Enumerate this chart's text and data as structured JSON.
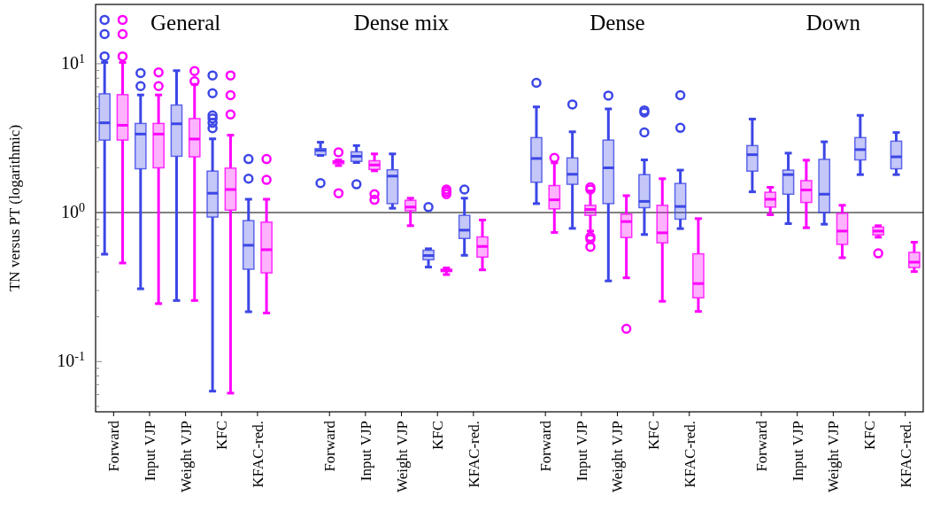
{
  "chart_data": {
    "type": "box",
    "ylabel": "TN versus PT (logarithmic)",
    "log": "y",
    "grid": false,
    "categories": [
      "Forward",
      "Input VJP",
      "Weight VJP",
      "KFC",
      "KFAC-red.",
      null,
      "Forward",
      "Input VJP",
      "Weight VJP",
      "KFC",
      "KFAC-red.",
      null,
      "Forward",
      "Input VJP",
      "Weight VJP",
      "KFC",
      "KFAC-red.",
      null,
      "Forward",
      "Input VJP",
      "Weight VJP",
      "KFC",
      "KFAC-red."
    ],
    "ylim": [
      0.046,
      25
    ],
    "yticks": [
      {
        "value": 0.05,
        "label": null
      },
      {
        "value": 0.06,
        "label": null
      },
      {
        "value": 0.07,
        "label": null
      },
      {
        "value": 0.08,
        "label": null
      },
      {
        "value": 0.09,
        "label": null
      },
      {
        "value": 0.1,
        "label": "10$^{-1}$"
      },
      {
        "value": 0.2,
        "label": null
      },
      {
        "value": 0.3,
        "label": null
      },
      {
        "value": 0.4,
        "label": null
      },
      {
        "value": 0.5,
        "label": null
      },
      {
        "value": 0.6,
        "label": null
      },
      {
        "value": 0.7,
        "label": null
      },
      {
        "value": 0.8,
        "label": null
      },
      {
        "value": 0.9,
        "label": null
      },
      {
        "value": 1,
        "label": "10$^{0}$"
      },
      {
        "value": 2,
        "label": null
      },
      {
        "value": 3,
        "label": null
      },
      {
        "value": 4,
        "label": null
      },
      {
        "value": 5,
        "label": null
      },
      {
        "value": 6,
        "label": null
      },
      {
        "value": 7,
        "label": null
      },
      {
        "value": 8,
        "label": null
      },
      {
        "value": 9,
        "label": null
      },
      {
        "value": 10,
        "label": "10$^{1}$"
      }
    ],
    "ref_lines": [
      {
        "axis": "y",
        "value": 1,
        "color": "#555555"
      }
    ],
    "annotations": [
      "General",
      "Dense mix",
      "Dense",
      "Down"
    ],
    "series": [
      {
        "color": "#3c46e6",
        "boxes": [
          {
            "low": 0.526,
            "q1": 3.07,
            "median": 4.01,
            "q3": 6.28,
            "high": 10.2,
            "outliers": [
              19.7,
              15.8,
              11.2
            ]
          },
          {
            "low": 0.308,
            "q1": 1.97,
            "median": 3.37,
            "q3": 3.97,
            "high": 6.17,
            "outliers": [
              8.65,
              7.07
            ]
          },
          {
            "low": 0.257,
            "q1": 2.39,
            "median": 3.95,
            "q3": 5.28,
            "high": 8.98
          },
          {
            "low": 0.0633,
            "q1": 0.934,
            "median": 1.35,
            "q3": 1.9,
            "high": 3.13,
            "outliers": [
              8.34,
              6.34,
              4.5,
              4.29,
              4.01,
              3.69
            ]
          },
          {
            "low": 0.216,
            "q1": 0.417,
            "median": 0.604,
            "q3": 0.884,
            "high": 1.23,
            "outliers": [
              2.29,
              1.69
            ]
          },
          null,
          {
            "low": 2.42,
            "q1": 2.44,
            "median": 2.62,
            "q3": 2.69,
            "high": 2.97,
            "outliers": [
              1.58
            ]
          },
          {
            "low": 2.17,
            "q1": 2.21,
            "median": 2.39,
            "q3": 2.56,
            "high": 2.82,
            "outliers": [
              1.55
            ]
          },
          {
            "low": 1.07,
            "q1": 1.15,
            "median": 1.76,
            "q3": 1.94,
            "high": 2.48
          },
          {
            "low": 0.431,
            "q1": 0.483,
            "median": 0.515,
            "q3": 0.559,
            "high": 0.572,
            "outliers": [
              1.09
            ]
          },
          {
            "low": 0.517,
            "q1": 0.671,
            "median": 0.763,
            "q3": 0.96,
            "high": 1.25,
            "outliers": [
              1.43
            ]
          },
          null,
          {
            "low": 1.15,
            "q1": 1.6,
            "median": 2.31,
            "q3": 3.19,
            "high": 5.13,
            "outliers": [
              7.44
            ]
          },
          {
            "low": 0.784,
            "q1": 1.55,
            "median": 1.81,
            "q3": 2.33,
            "high": 3.49,
            "outliers": [
              5.33
            ]
          },
          {
            "low": 0.348,
            "q1": 1.15,
            "median": 2.0,
            "q3": 3.07,
            "high": 4.97,
            "outliers": [
              6.11
            ]
          },
          {
            "low": 0.713,
            "q1": 1.08,
            "median": 1.19,
            "q3": 1.8,
            "high": 2.26,
            "outliers": [
              4.86,
              4.71,
              3.46
            ]
          },
          {
            "low": 0.781,
            "q1": 0.904,
            "median": 1.1,
            "q3": 1.57,
            "high": 1.93,
            "outliers": [
              6.14,
              3.71
            ]
          },
          null,
          {
            "low": 1.38,
            "q1": 1.9,
            "median": 2.45,
            "q3": 2.82,
            "high": 4.25
          },
          {
            "low": 0.844,
            "q1": 1.33,
            "median": 1.8,
            "q3": 1.93,
            "high": 2.51
          },
          {
            "low": 0.836,
            "q1": 1.0,
            "median": 1.33,
            "q3": 2.28,
            "high": 2.99
          },
          {
            "low": 1.8,
            "q1": 2.26,
            "median": 2.65,
            "q3": 3.19,
            "high": 4.5
          },
          {
            "low": 1.8,
            "q1": 1.97,
            "median": 2.37,
            "q3": 3.02,
            "high": 3.45
          }
        ]
      },
      {
        "color": "#ff00ff",
        "boxes": [
          {
            "low": 0.459,
            "q1": 3.07,
            "median": 3.86,
            "q3": 6.2,
            "high": 10.2,
            "outliers": [
              19.7,
              15.8,
              11.2
            ]
          },
          {
            "low": 0.245,
            "q1": 2.0,
            "median": 3.37,
            "q3": 3.97,
            "high": 6.17,
            "outliers": [
              8.74,
              7.07
            ]
          },
          {
            "low": 0.257,
            "q1": 2.37,
            "median": 3.12,
            "q3": 4.28,
            "high": 7.27,
            "outliers": [
              8.93,
              7.62
            ]
          },
          {
            "low": 0.0614,
            "q1": 1.04,
            "median": 1.43,
            "q3": 1.99,
            "high": 3.31,
            "outliers": [
              8.34,
              6.14,
              4.56
            ]
          },
          {
            "low": 0.212,
            "q1": 0.394,
            "median": 0.564,
            "q3": 0.863,
            "high": 1.23,
            "outliers": [
              2.29,
              1.66
            ]
          },
          null,
          {
            "low": 2.07,
            "q1": 2.13,
            "median": 2.19,
            "q3": 2.23,
            "high": 2.26,
            "outliers": [
              2.54,
              1.35
            ]
          },
          {
            "low": 1.91,
            "q1": 1.95,
            "median": 2.09,
            "q3": 2.23,
            "high": 2.48,
            "outliers": [
              1.33,
              1.22
            ]
          },
          {
            "low": 0.817,
            "q1": 1.03,
            "median": 1.09,
            "q3": 1.21,
            "high": 1.25
          },
          {
            "low": 0.384,
            "q1": 0.402,
            "median": 0.409,
            "q3": 0.417,
            "high": 0.425,
            "outliers": [
              1.43,
              1.38,
              1.33
            ]
          },
          {
            "low": 0.413,
            "q1": 0.503,
            "median": 0.593,
            "q3": 0.687,
            "high": 0.892
          },
          null,
          {
            "low": 0.736,
            "q1": 1.06,
            "median": 1.22,
            "q3": 1.52,
            "high": 2.16,
            "outliers": [
              2.33
            ]
          },
          {
            "low": 0.752,
            "q1": 0.96,
            "median": 1.05,
            "q3": 1.12,
            "high": 1.4,
            "outliers": [
              1.48,
              1.43,
              0.687,
              0.665,
              0.59
            ]
          },
          {
            "low": 0.365,
            "q1": 0.681,
            "median": 0.871,
            "q3": 0.977,
            "high": 1.3,
            "outliers": [
              0.166
            ]
          },
          {
            "low": 0.254,
            "q1": 0.627,
            "median": 0.732,
            "q3": 1.12,
            "high": 1.69
          },
          {
            "low": 0.217,
            "q1": 0.268,
            "median": 0.334,
            "q3": 0.529,
            "high": 0.912
          },
          null,
          {
            "low": 0.968,
            "q1": 1.09,
            "median": 1.23,
            "q3": 1.37,
            "high": 1.48
          },
          {
            "low": 0.792,
            "q1": 1.17,
            "median": 1.42,
            "q3": 1.64,
            "high": 2.25
          },
          {
            "low": 0.498,
            "q1": 0.612,
            "median": 0.752,
            "q3": 0.99,
            "high": 1.12
          },
          {
            "low": 0.684,
            "q1": 0.709,
            "median": 0.752,
            "q3": 0.8,
            "high": 0.817,
            "outliers": [
              0.533
            ]
          },
          {
            "low": 0.402,
            "q1": 0.428,
            "median": 0.465,
            "q3": 0.541,
            "high": 0.633
          }
        ]
      }
    ]
  }
}
